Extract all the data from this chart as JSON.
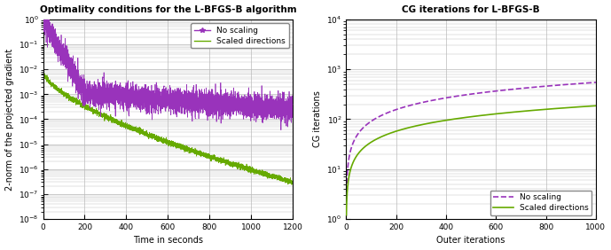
{
  "left_title": "Optimality conditions for the L-BFGS-B algorithm",
  "right_title": "CG iterations for L-BFGS-B",
  "left_xlabel": "Time in seconds",
  "left_ylabel": "2-norm of the projected gradient",
  "right_xlabel": "Outer iterations",
  "right_ylabel": "CG iterations",
  "left_xlim": [
    0,
    1200
  ],
  "left_ylim": [
    1e-08,
    1.0
  ],
  "right_xlim": [
    0,
    1000
  ],
  "right_ylim": [
    1.0,
    10000.0
  ],
  "purple_color": "#9933BB",
  "green_color": "#66AA00",
  "background_color": "#ffffff",
  "grid_color": "#bbbbbb",
  "legend1_labels": [
    "No scaling",
    "Scaled directions"
  ],
  "legend2_labels": [
    "No scaling",
    "Scaled directions"
  ]
}
